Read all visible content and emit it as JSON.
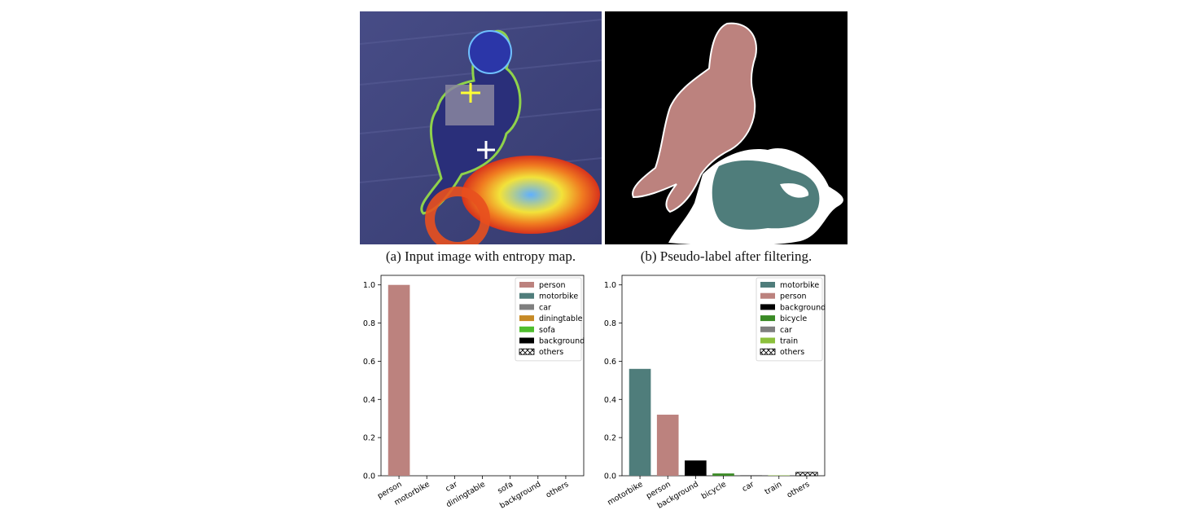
{
  "captions": {
    "a": "(a) Input image with entropy map.",
    "b": "(b) Pseudo-label after filtering."
  },
  "colors": {
    "person": "#bc827e",
    "motorbike": "#4f7d7b",
    "car": "#7f7f7f",
    "diningtable": "#c68a26",
    "sofa": "#4fbe2e",
    "background": "#000000",
    "bicycle": "#3a8a25",
    "train": "#8cc03c"
  },
  "chart_data": [
    {
      "type": "bar",
      "categories": [
        "person",
        "motorbike",
        "car",
        "diningtable",
        "sofa",
        "background",
        "others"
      ],
      "values": [
        1.0,
        0.0,
        0.0,
        0.0,
        0.0,
        0.0,
        0.0
      ],
      "ylim": [
        0,
        1.05
      ],
      "yticks": [
        "0.0",
        "0.2",
        "0.4",
        "0.6",
        "0.8",
        "1.0"
      ],
      "legend": [
        "person",
        "motorbike",
        "car",
        "diningtable",
        "sofa",
        "background",
        "others"
      ],
      "legend_position": "top-right"
    },
    {
      "type": "bar",
      "categories": [
        "motorbike",
        "person",
        "background",
        "bicycle",
        "car",
        "train",
        "others"
      ],
      "values": [
        0.56,
        0.32,
        0.08,
        0.012,
        0.004,
        0.002,
        0.018
      ],
      "ylim": [
        0,
        1.05
      ],
      "yticks": [
        "0.0",
        "0.2",
        "0.4",
        "0.6",
        "0.8",
        "1.0"
      ],
      "legend": [
        "motorbike",
        "person",
        "background",
        "bicycle",
        "car",
        "train",
        "others"
      ],
      "legend_position": "top-right"
    }
  ]
}
